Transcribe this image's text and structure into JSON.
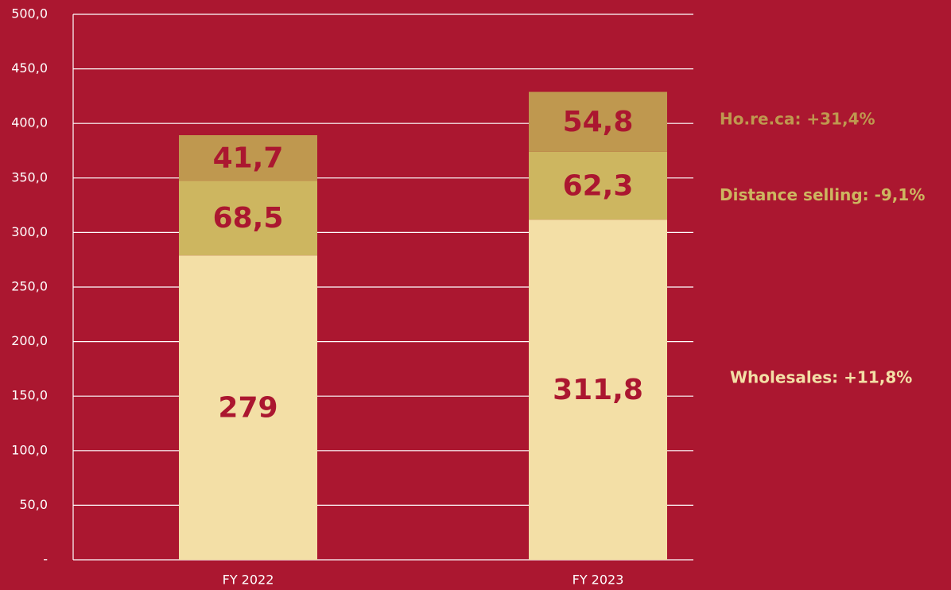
{
  "chart_data": {
    "type": "stacked_bar",
    "categories": [
      "FY 2022",
      "FY 2023"
    ],
    "series": [
      {
        "color": "#f3dfa6",
        "values": [
          279,
          311.8
        ],
        "value_labels": [
          "279",
          "311,8"
        ],
        "annotation": "Wholesales: +11,8%"
      },
      {
        "color": "#cdb660",
        "values": [
          68.5,
          62.3
        ],
        "value_labels": [
          "68,5",
          "62,3"
        ],
        "annotation": "Distance selling: -9,1%"
      },
      {
        "color": "#bf984f",
        "values": [
          41.7,
          54.8
        ],
        "value_labels": [
          "41,7",
          "54,8"
        ],
        "annotation": "Ho.re.ca: +31,4%"
      }
    ],
    "ylim": [
      0,
      500
    ],
    "yticks": [
      {
        "value": 0,
        "label": "-"
      },
      {
        "value": 50,
        "label": "50,0"
      },
      {
        "value": 100,
        "label": "100,0"
      },
      {
        "value": 150,
        "label": "150,0"
      },
      {
        "value": 200,
        "label": "200,0"
      },
      {
        "value": 250,
        "label": "250,0"
      },
      {
        "value": 300,
        "label": "300,0"
      },
      {
        "value": 350,
        "label": "350,0"
      },
      {
        "value": 400,
        "label": "400,0"
      },
      {
        "value": 450,
        "label": "450,0"
      },
      {
        "value": 500,
        "label": "500,0"
      }
    ],
    "grid": true,
    "background": "#ab1730",
    "label_color": "#ab1730"
  }
}
